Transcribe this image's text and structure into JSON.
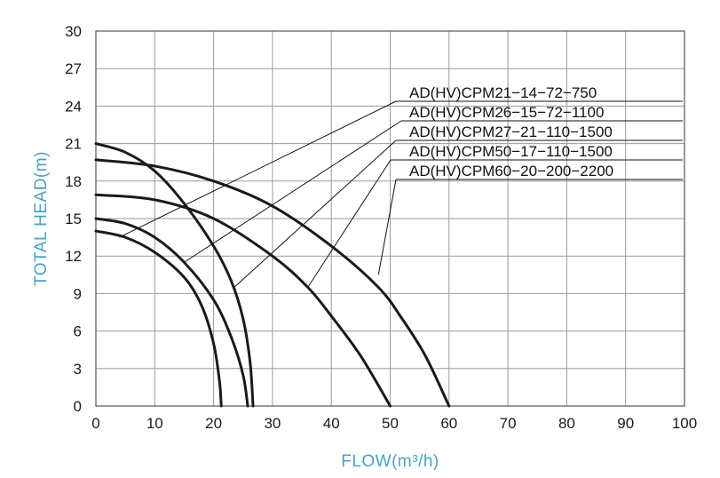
{
  "chart_data": {
    "type": "line",
    "xlabel": "FLOW(m³/h)",
    "ylabel": "TOTAL HEAD(m)",
    "xlim": [
      0,
      100
    ],
    "ylim": [
      0,
      30
    ],
    "xticks": [
      0,
      10,
      20,
      30,
      40,
      50,
      60,
      70,
      80,
      90,
      100
    ],
    "yticks": [
      0,
      3,
      6,
      9,
      12,
      15,
      18,
      21,
      24,
      27,
      30
    ],
    "grid": true,
    "legend_position": "top-right",
    "series": [
      {
        "name": "AD(HV)CPM21−14−72−750",
        "points": [
          [
            0,
            14
          ],
          [
            5,
            13.5
          ],
          [
            10,
            12.3
          ],
          [
            15,
            10.3
          ],
          [
            18,
            8
          ],
          [
            20,
            5
          ],
          [
            21,
            2
          ],
          [
            21.3,
            0
          ]
        ],
        "label_anchor": [
          4,
          13.5
        ]
      },
      {
        "name": "AD(HV)CPM26−15−72−1100",
        "points": [
          [
            0,
            15
          ],
          [
            5,
            14.6
          ],
          [
            10,
            13.5
          ],
          [
            15,
            11.5
          ],
          [
            20,
            8.5
          ],
          [
            23,
            5.5
          ],
          [
            25,
            2.5
          ],
          [
            25.8,
            0
          ]
        ],
        "label_anchor": [
          15,
          11.5
        ]
      },
      {
        "name": "AD(HV)CPM27−21−110−1500",
        "points": [
          [
            0,
            21
          ],
          [
            5,
            20.3
          ],
          [
            10,
            18.8
          ],
          [
            15,
            16.2
          ],
          [
            20,
            12.8
          ],
          [
            23,
            10
          ],
          [
            25,
            7
          ],
          [
            26.2,
            3.5
          ],
          [
            26.7,
            0
          ]
        ],
        "label_anchor": [
          23.5,
          9.5
        ]
      },
      {
        "name": "AD(HV)CPM50−17−110−1500",
        "points": [
          [
            0,
            16.9
          ],
          [
            10,
            16.5
          ],
          [
            20,
            15
          ],
          [
            30,
            12
          ],
          [
            36,
            9.5
          ],
          [
            40,
            7.2
          ],
          [
            45,
            4
          ],
          [
            50,
            0
          ]
        ],
        "label_anchor": [
          36,
          9.5
        ]
      },
      {
        "name": "AD(HV)CPM60−20−200−2200",
        "points": [
          [
            0,
            19.7
          ],
          [
            10,
            19.2
          ],
          [
            20,
            18
          ],
          [
            30,
            16
          ],
          [
            40,
            12.8
          ],
          [
            48,
            9.5
          ],
          [
            52,
            7
          ],
          [
            56,
            4
          ],
          [
            60,
            0
          ]
        ],
        "label_anchor": [
          48,
          10.5
        ]
      }
    ]
  }
}
